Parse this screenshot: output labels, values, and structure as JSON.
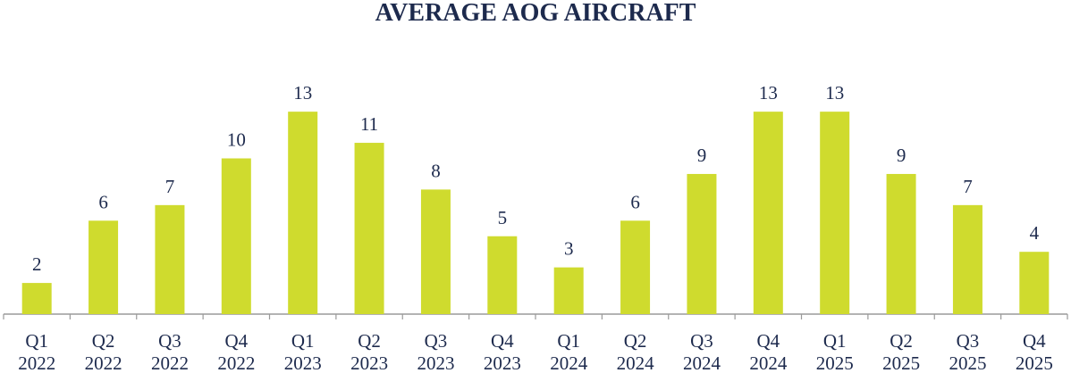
{
  "chart_data": {
    "type": "bar",
    "title": "AVERAGE AOG AIRCRAFT",
    "xlabel": "",
    "ylabel": "",
    "grid": false,
    "legend": "none",
    "bar_color": "#cfdb2e",
    "text_color": "#1d2a4d",
    "axis_color": "#9a9a9a",
    "ylim": [
      0,
      15
    ],
    "categories": [
      [
        "Q1",
        "2022"
      ],
      [
        "Q2",
        "2022"
      ],
      [
        "Q3",
        "2022"
      ],
      [
        "Q4",
        "2022"
      ],
      [
        "Q1",
        "2023"
      ],
      [
        "Q2",
        "2023"
      ],
      [
        "Q3",
        "2023"
      ],
      [
        "Q4",
        "2023"
      ],
      [
        "Q1",
        "2024"
      ],
      [
        "Q2",
        "2024"
      ],
      [
        "Q3",
        "2024"
      ],
      [
        "Q4",
        "2024"
      ],
      [
        "Q1",
        "2025"
      ],
      [
        "Q2",
        "2025"
      ],
      [
        "Q3",
        "2025"
      ],
      [
        "Q4",
        "2025"
      ]
    ],
    "values": [
      2,
      6,
      7,
      10,
      13,
      11,
      8,
      5,
      3,
      6,
      9,
      13,
      13,
      9,
      7,
      4
    ]
  }
}
